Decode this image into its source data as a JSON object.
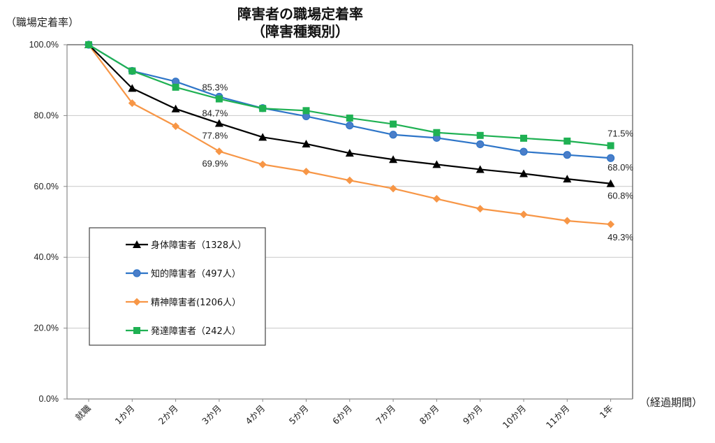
{
  "chart_data": {
    "type": "line",
    "title": "障害者の職場定着率",
    "subtitle": "（障害種類別）",
    "ylabel": "（職場定着率）",
    "xlabel": "（経過期間）",
    "ylim": [
      0,
      100
    ],
    "yticks": [
      "0.0%",
      "20.0%",
      "40.0%",
      "60.0%",
      "80.0%",
      "100.0%"
    ],
    "ytick_values": [
      0,
      20,
      40,
      60,
      80,
      100
    ],
    "grid": "horizontal",
    "legend_position": "bottom-left",
    "categories": [
      "就職",
      "1か月",
      "2か月",
      "3か月",
      "4か月",
      "5か月",
      "6か月",
      "7か月",
      "8か月",
      "9か月",
      "10か月",
      "11か月",
      "1年"
    ],
    "series": [
      {
        "name": "身体障害者（1328人）",
        "color": "#000000",
        "marker": "triangle",
        "values": [
          100,
          87.7,
          81.9,
          77.8,
          73.9,
          72.0,
          69.4,
          67.6,
          66.2,
          64.8,
          63.6,
          62.1,
          60.8
        ]
      },
      {
        "name": "知的障害者（497人）",
        "color": "#2E75C8",
        "marker": "circle",
        "values": [
          100,
          92.6,
          89.6,
          85.3,
          82.1,
          79.8,
          77.2,
          74.6,
          73.7,
          71.9,
          69.8,
          68.9,
          68.0
        ]
      },
      {
        "name": "精神障害者(1206人）",
        "color": "#F79646",
        "marker": "diamond",
        "values": [
          100,
          83.5,
          77.0,
          69.9,
          66.2,
          64.2,
          61.7,
          59.4,
          56.5,
          53.7,
          52.1,
          50.3,
          49.3
        ]
      },
      {
        "name": "発達障害者（242人）",
        "color": "#1FB153",
        "marker": "square",
        "values": [
          100,
          92.6,
          88.0,
          84.7,
          82.0,
          81.4,
          79.3,
          77.6,
          75.2,
          74.4,
          73.6,
          72.8,
          71.5
        ]
      }
    ],
    "annotations": [
      {
        "text": "85.3%",
        "series": 1,
        "index": 3
      },
      {
        "text": "84.7%",
        "series": 3,
        "index": 3
      },
      {
        "text": "77.8%",
        "series": 0,
        "index": 3
      },
      {
        "text": "69.9%",
        "series": 2,
        "index": 3
      },
      {
        "text": "71.5%",
        "series": 3,
        "index": 12
      },
      {
        "text": "68.0%",
        "series": 1,
        "index": 12
      },
      {
        "text": "60.8%",
        "series": 0,
        "index": 12
      },
      {
        "text": "49.3%",
        "series": 2,
        "index": 12
      }
    ]
  }
}
